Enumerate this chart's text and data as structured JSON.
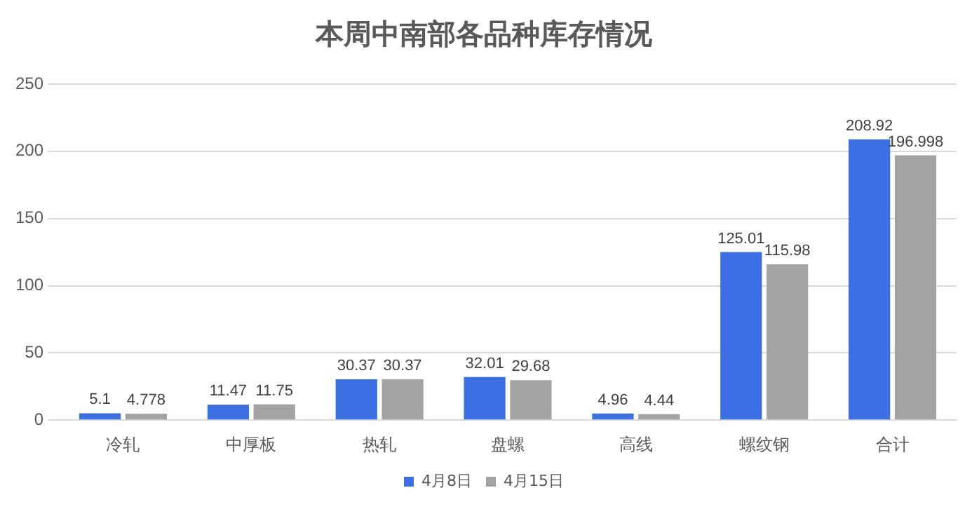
{
  "chart_data": {
    "type": "bar",
    "title": "本周中南部各品种库存情况",
    "categories": [
      "冷轧",
      "中厚板",
      "热轧",
      "盘螺",
      "高线",
      "螺纹钢",
      "合计"
    ],
    "series": [
      {
        "name": "4月8日",
        "color": "#3b6fe3",
        "values": [
          5.1,
          11.47,
          30.37,
          32.01,
          4.96,
          125.01,
          208.92
        ]
      },
      {
        "name": "4月15日",
        "color": "#a3a3a3",
        "values": [
          4.778,
          11.75,
          30.37,
          29.68,
          4.44,
          115.98,
          196.998
        ]
      }
    ],
    "ylim": [
      0,
      250
    ],
    "yticks": [
      0,
      50,
      100,
      150,
      200,
      250
    ],
    "grid": "y",
    "legend": "bottom",
    "data_labels": true
  }
}
